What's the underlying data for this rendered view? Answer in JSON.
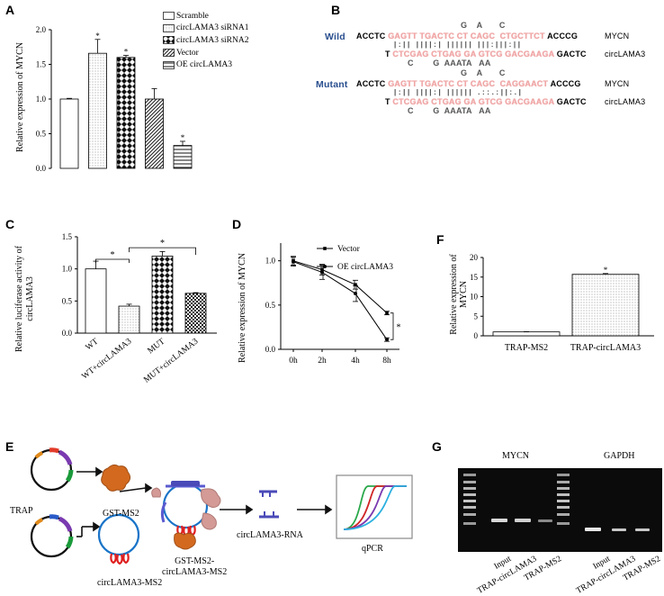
{
  "panels": {
    "A": "A",
    "B": "B",
    "C": "C",
    "D": "D",
    "E": "E",
    "F": "F",
    "G": "G"
  },
  "chart_data": [
    {
      "id": "A",
      "type": "bar",
      "ylabel": "Relative expression of MYCN",
      "ylim": [
        0,
        2.0
      ],
      "yticks": [
        "0.0",
        "0.5",
        "1.0",
        "1.5",
        "2.0"
      ],
      "categories": [
        "Scramble",
        "circLAMA3 siRNA1",
        "circLAMA3 siRNA2",
        "Vector",
        "OE circLAMA3"
      ],
      "values": [
        1.0,
        1.66,
        1.6,
        1.0,
        0.33
      ],
      "errors": [
        0.01,
        0.2,
        0.03,
        0.15,
        0.06
      ],
      "significance": [
        "",
        "*",
        "*",
        "",
        "*"
      ],
      "legend": [
        "Scramble",
        "circLAMA3 siRNA1",
        "circLAMA3 siRNA2",
        "Vector",
        "OE circLAMA3"
      ]
    },
    {
      "id": "C",
      "type": "bar",
      "ylabel": "Relative luciferase activity of circLAMA3",
      "ylim": [
        0,
        1.5
      ],
      "yticks": [
        "0.0",
        "0.5",
        "1.0",
        "1.5"
      ],
      "categories": [
        "WT",
        "WT+circLAMA3",
        "MUT",
        "MUT+circLAMA3"
      ],
      "values": [
        1.0,
        0.42,
        1.2,
        0.62
      ],
      "errors": [
        0.12,
        0.03,
        0.07,
        0.01
      ],
      "significance_brackets": [
        {
          "from": "WT",
          "to": "WT+circLAMA3",
          "label": "*"
        },
        {
          "from": "WT+circLAMA3",
          "to": "MUT+circLAMA3",
          "label": "*"
        }
      ]
    },
    {
      "id": "D",
      "type": "line",
      "ylabel": "Relative expression of MYCN",
      "ylim": [
        0,
        1.0
      ],
      "yticks": [
        "0.0",
        "0.5",
        "1.0"
      ],
      "x": [
        "0h",
        "2h",
        "4h",
        "8h"
      ],
      "series": [
        {
          "name": "Vector",
          "values": [
            1.0,
            0.9,
            0.73,
            0.41
          ],
          "errors": [
            0.05,
            0.06,
            0.05,
            0.02
          ]
        },
        {
          "name": "OE circLAMA3",
          "values": [
            0.99,
            0.87,
            0.63,
            0.11
          ],
          "errors": [
            0.05,
            0.08,
            0.09,
            0.02
          ]
        }
      ],
      "significance": "*"
    },
    {
      "id": "F",
      "type": "bar",
      "ylabel": "Relative expression of MYCN",
      "ylim": [
        0,
        20
      ],
      "yticks": [
        "0",
        "5",
        "10",
        "15",
        "20"
      ],
      "categories": [
        "TRAP-MS2",
        "TRAP-circLAMA3"
      ],
      "values": [
        1.0,
        15.7
      ],
      "errors": [
        0.05,
        0.2
      ],
      "significance": [
        "",
        "*"
      ]
    }
  ],
  "panelB": {
    "wild_label": "Wild",
    "mutant_label": "Mutant",
    "mycn": "MYCN",
    "circ": "circLAMA3",
    "wild_top_bulge": "G    A       C",
    "wild_top_left": "ACCTC",
    "wild_top_red": "GAGTT TGACTC CT CAGC  CTGCTTCT",
    "wild_top_right": "ACCCG",
    "wild_bottom_left": "T",
    "wild_bottom_red": "CTCGAG CTGAG GA GTCG GACGAAGA",
    "wild_bottom_right": "GACTC",
    "wild_bottom_bulge": "C        G  AAATA   AA",
    "mut_top_bulge": "G    A       C",
    "mut_top_left": "ACCTC",
    "mut_top_red": "GAGTT TGACTC CT CAGC  CAGGAACT",
    "mut_top_right": "ACCCG",
    "mut_bottom_left": "T",
    "mut_bottom_red": "CTCGAG CTGAG GA GTCG GACGAAGA",
    "mut_bottom_right": "GACTC",
    "mut_bottom_bulge": "C        G  AAATA   AA"
  },
  "panelE": {
    "trap": "TRAP",
    "gst_ms2": "GST-MS2",
    "circ_ms2": "circLAMA3-MS2",
    "complex_line1": "GST-MS2-",
    "complex_line2": "circLAMA3-MS2",
    "circ_rna": "circLAMA3-RNA",
    "qpcr": "qPCR"
  },
  "panelG": {
    "mycn": "MYCN",
    "gapdh": "GAPDH",
    "lanes": [
      "Input",
      "TRAP-circLAMA3",
      "TRAP-MS2",
      "Input",
      "TRAP-circLAMA3",
      "TRAP-MS2"
    ]
  },
  "colors": {
    "seq_red": "#f2a7a7",
    "label_blue": "#2a4f8f",
    "vector_circle": "#1a74c8",
    "protein_orange": "#d2691e",
    "ms2_red": "#e02020",
    "curve_green": "#2aa84a",
    "curve_red": "#d02424",
    "curve_purple": "#7a3ab0",
    "curve_cyan": "#2ab0e0"
  }
}
